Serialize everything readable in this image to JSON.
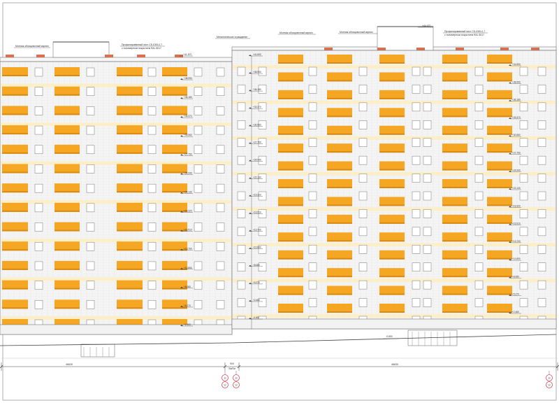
{
  "drawing": {
    "sheet_title": "",
    "colors": {
      "facade": "#f4f4f4",
      "brick_line": "#e4e4e4",
      "balcony": "#f5a623",
      "balcony_dark": "#d98a10",
      "accent_band": "#fdeec2",
      "window": "#ffffff",
      "frame": "#777777",
      "roof_vent": "#d9704f",
      "axis_marker": "#d8505e",
      "line": "#444444"
    },
    "left_block": {
      "callouts": [
        "Монтаж облицовочный кирпич",
        "Профилированный лист С8-1000-0,7",
        "с полимерным покрытием RAL 8017"
      ],
      "top_level": "+41.570",
      "floor_levels": [
        "+38.990",
        "+36.180",
        "+33.370",
        "+30.560",
        "+27.750",
        "+24.940",
        "+22.130",
        "+19.320",
        "+16.510",
        "+13.700",
        "+10.890",
        "+8.080",
        "+5.270",
        "+2.460"
      ]
    },
    "right_block": {
      "callouts": [
        "Металлическое ограждение",
        "Монтаж облицовочный кирпич",
        "Монтаж облицовочный кирпич",
        "Профилированный лист С8-1000-0,7",
        "с полимерным покрытием RAL 8017"
      ],
      "top_level": "+44.470",
      "side_levels": [
        "+41.800",
        "+38.990",
        "+36.180",
        "+33.370",
        "+30.560",
        "+27.750",
        "+24.940",
        "+22.130",
        "+19.320",
        "+16.510",
        "+13.700",
        "+10.890",
        "+8.080",
        "+5.270",
        "+2.460",
        "-0.000"
      ],
      "floor_levels": [
        "+41.800",
        "+38.990",
        "+36.180",
        "+33.370",
        "+30.560",
        "+27.750",
        "+24.940",
        "+22.130",
        "+19.320",
        "+16.510",
        "+13.700",
        "+10.890",
        "+8.080",
        "+5.270",
        "+2.460"
      ],
      "ground_level": "-0.800"
    },
    "dimensions": {
      "left_span": "46630",
      "gap": "900",
      "gap_sub": "Sм/Sм",
      "right_span": "46630"
    },
    "axes": {
      "left_pair": [
        "1с",
        "1с"
      ],
      "right_pair": [
        "1с",
        "1с"
      ]
    }
  }
}
